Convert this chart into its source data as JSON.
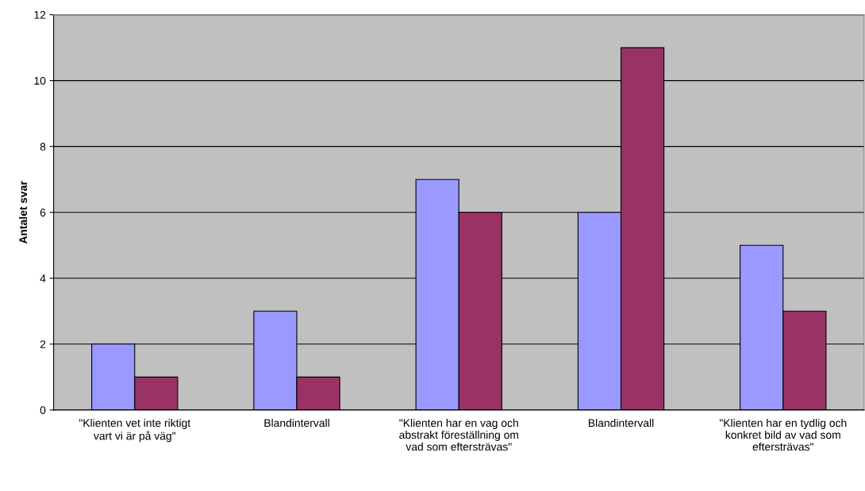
{
  "chart_data": {
    "type": "bar",
    "ylabel": "Antalet svar",
    "categories": [
      "\"Klienten vet inte riktigt\nvart vi är på väg\"",
      "Blandintervall",
      "\"Klienten har en vag och\nabstrakt föreställning om\nvad som eftersträvas\"",
      "Blandintervall",
      "\"Klienten har en tydlig och\nkonkret bild av vad som\neftersträvas\""
    ],
    "series": [
      {
        "color": "#9999ff",
        "values": [
          2,
          3,
          7,
          6,
          5
        ]
      },
      {
        "color": "#993366",
        "values": [
          1,
          1,
          6,
          11,
          3
        ]
      }
    ],
    "ylim": [
      0,
      12
    ],
    "yticks": [
      0,
      2,
      4,
      6,
      8,
      10,
      12
    ],
    "grid": "y"
  }
}
